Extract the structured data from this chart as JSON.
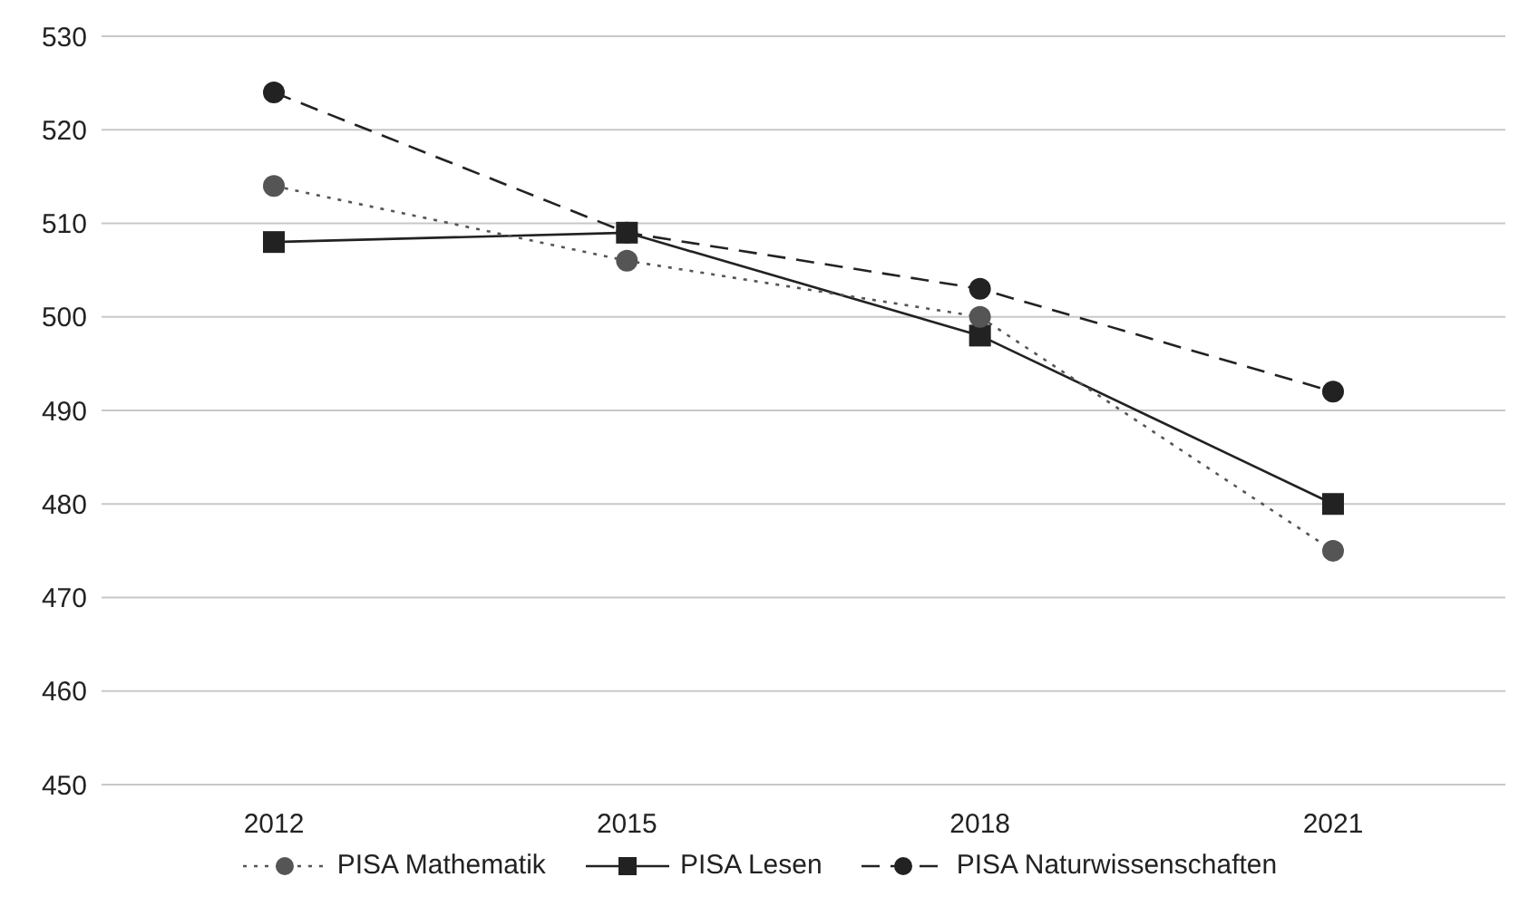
{
  "chart_data": {
    "type": "line",
    "categories": [
      "2012",
      "2015",
      "2018",
      "2021"
    ],
    "series": [
      {
        "name": "PISA Mathematik",
        "color": "#555555",
        "values": [
          514,
          506,
          500,
          475
        ],
        "marker": "circle",
        "line_style": "dotted"
      },
      {
        "name": "PISA Lesen",
        "color": "#222222",
        "values": [
          508,
          509,
          498,
          480
        ],
        "marker": "square",
        "line_style": "solid"
      },
      {
        "name": "PISA Naturwissenschaften",
        "color": "#222222",
        "values": [
          524,
          509,
          503,
          492
        ],
        "marker": "circle",
        "line_style": "dashed"
      }
    ],
    "ylim": [
      450,
      530
    ],
    "yticks": [
      450,
      460,
      470,
      480,
      490,
      500,
      510,
      520,
      530
    ],
    "grid": "y",
    "legend": "bottom"
  }
}
